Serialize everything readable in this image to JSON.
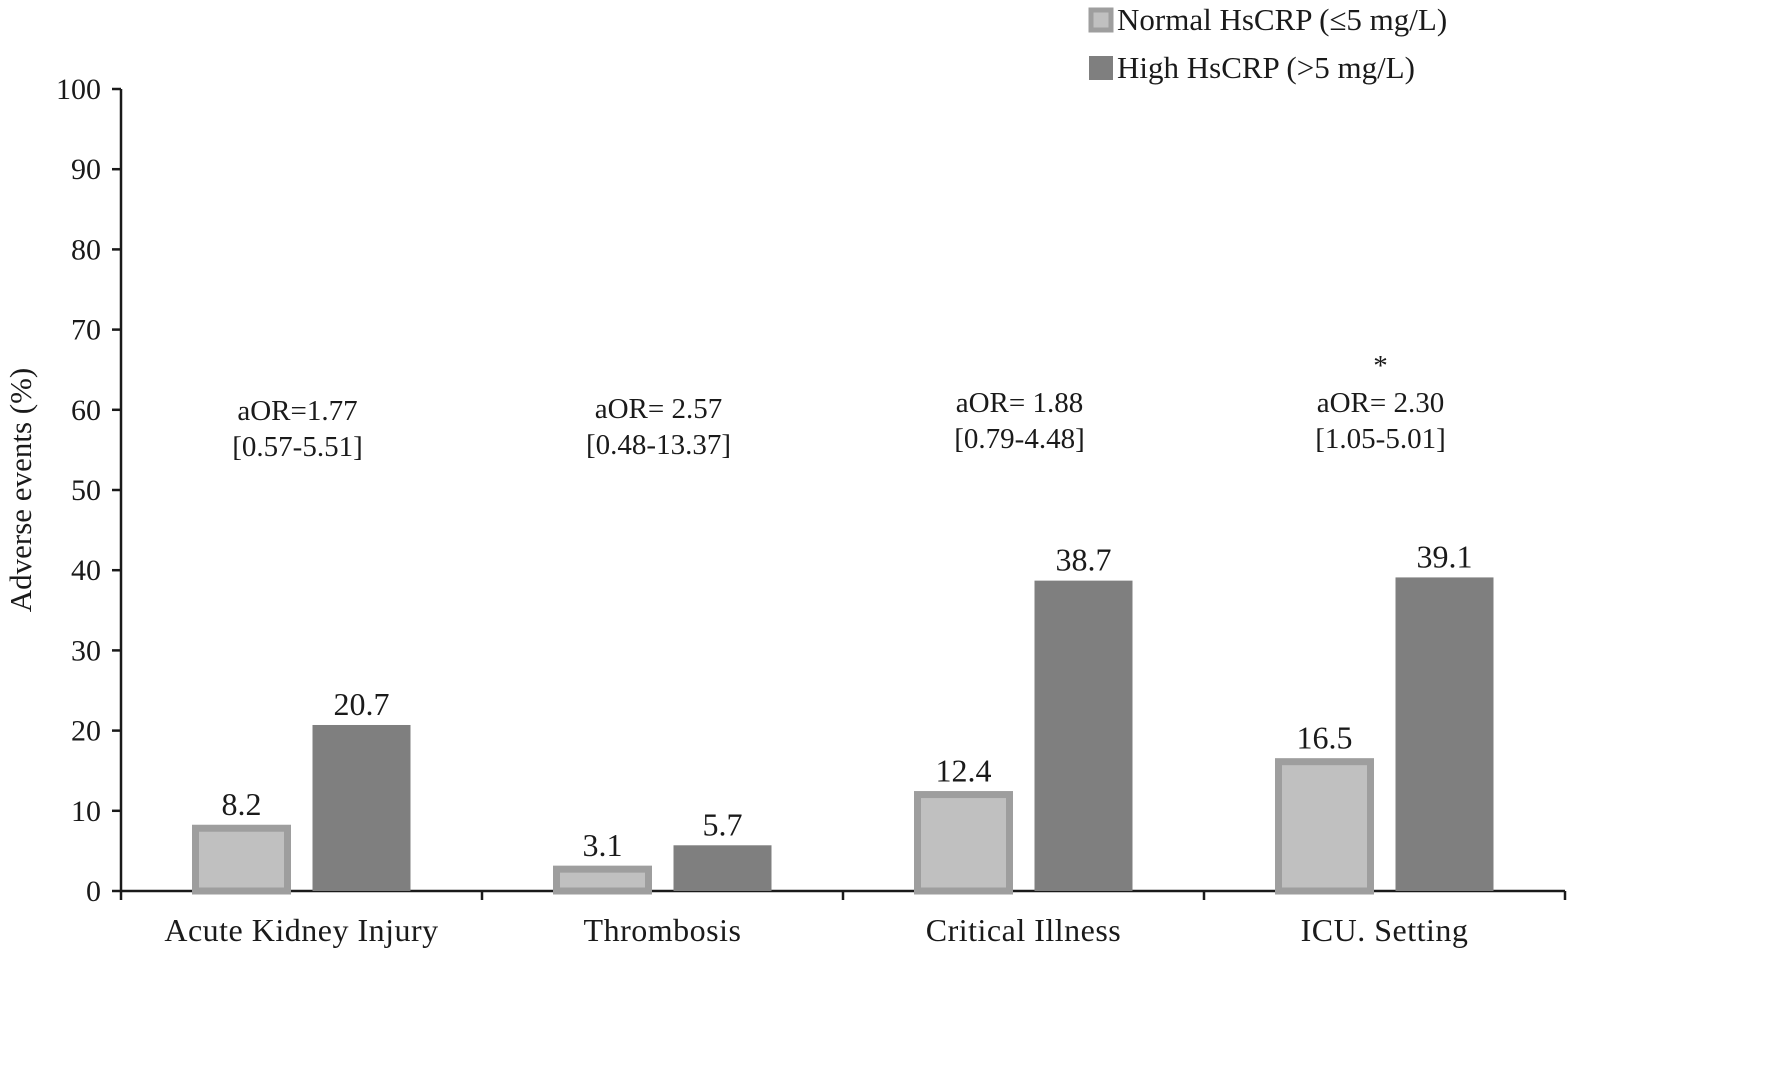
{
  "chart_data": {
    "type": "bar",
    "title": "",
    "xlabel": "",
    "ylabel": "Adverse events (%)",
    "ylim": [
      0,
      100
    ],
    "yticks": [
      0,
      10,
      20,
      30,
      40,
      50,
      60,
      70,
      80,
      90,
      100
    ],
    "categories": [
      "Acute Kidney Injury",
      "Thrombosis",
      "Critical Illness",
      "ICU. Setting"
    ],
    "series": [
      {
        "name": "Normal HsCRP  (≤5 mg/L)",
        "color": "#c0c0c0",
        "border": "#9e9e9e",
        "values": [
          8.2,
          3.1,
          12.4,
          16.5
        ]
      },
      {
        "name": "High HsCRP (>5 mg/L)",
        "color": "#7f7f7f",
        "border": "#7f7f7f",
        "values": [
          20.7,
          5.7,
          38.7,
          39.1
        ]
      }
    ],
    "data_labels": [
      [
        "8.2",
        "3.1",
        "12.4",
        "16.5"
      ],
      [
        "20.7",
        "5.7",
        "38.7",
        "39.1"
      ]
    ],
    "annotations": [
      {
        "line1": "aOR=1.77",
        "line2": "[0.57-5.51]",
        "star": ""
      },
      {
        "line1": "aOR= 2.57",
        "line2": "[0.48-13.37]",
        "star": ""
      },
      {
        "line1": "aOR= 1.88",
        "line2": "[0.79-4.48]",
        "star": ""
      },
      {
        "line1": "aOR= 2.30",
        "line2": "[1.05-5.01]",
        "star": "*"
      }
    ],
    "legend_position": "top-right",
    "grid": false
  }
}
